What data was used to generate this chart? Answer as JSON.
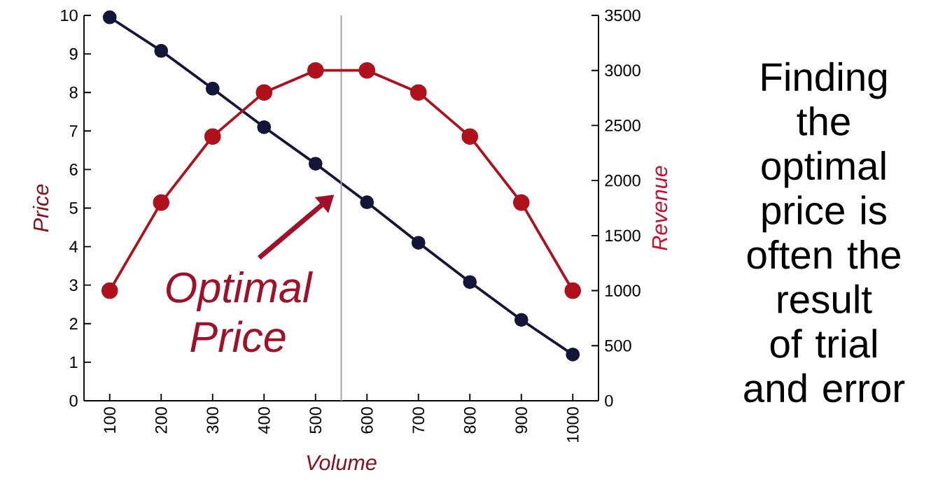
{
  "chart_data": {
    "type": "line",
    "xlabel": "Volume",
    "ylabel": "Price",
    "y2label": "Revenue",
    "x": [
      100,
      200,
      300,
      400,
      500,
      600,
      700,
      800,
      900,
      1000
    ],
    "series": [
      {
        "color": "#b0101c",
        "axis": "y2",
        "values": [
          1000,
          1800,
          2400,
          2800,
          3000,
          3000,
          2800,
          2400,
          1800,
          1000
        ]
      },
      {
        "color": "#15153a",
        "values": [
          9.95,
          9.08,
          8.1,
          7.1,
          6.15,
          5.15,
          4.1,
          3.08,
          2.1,
          1.2
        ]
      }
    ],
    "xlim": [
      50,
      1050
    ],
    "xticks": [
      100,
      200,
      300,
      400,
      500,
      600,
      700,
      800,
      900,
      1000
    ],
    "ylim": [
      0,
      10
    ],
    "yticks": [
      0,
      1,
      2,
      3,
      4,
      5,
      6,
      7,
      8,
      9,
      10
    ],
    "y2lim": [
      0,
      3500
    ],
    "y2ticks": [
      0,
      500,
      1000,
      1500,
      2000,
      2500,
      3000,
      3500
    ],
    "marker": "circle",
    "line_style": "solid",
    "ref_lines": [
      {
        "axis": "x",
        "value": 550,
        "color": "#a0a0a0",
        "label": "Optimal Price"
      }
    ],
    "annotations": [
      "Finding the optimal price is often the result of trial and error"
    ]
  }
}
